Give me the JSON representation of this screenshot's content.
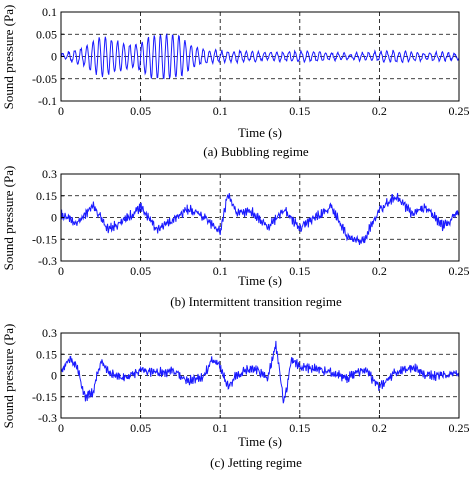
{
  "chart_data": [
    {
      "type": "line",
      "caption": "(a) Bubbling regime",
      "xlabel": "Time (s)",
      "ylabel": "Sound pressure (Pa)",
      "xlim": [
        0,
        0.25
      ],
      "ylim": [
        -0.1,
        0.1
      ],
      "xticks": [
        "0",
        "0.05",
        "0.1",
        "0.15",
        "0.2",
        "0.25"
      ],
      "yticks": [
        "0.1",
        "0.05",
        "0",
        "-0.05",
        "-0.1"
      ],
      "grid": true,
      "color": "#1a1aff",
      "series": [
        {
          "x": [
            0,
            0.005,
            0.01,
            0.015,
            0.02,
            0.025,
            0.03,
            0.035,
            0.04,
            0.045,
            0.05,
            0.055,
            0.06,
            0.065,
            0.07,
            0.075,
            0.08,
            0.085,
            0.09,
            0.1,
            0.11,
            0.12,
            0.13,
            0.14,
            0.15,
            0.16,
            0.17,
            0.18,
            0.19,
            0.2,
            0.21,
            0.22,
            0.23,
            0.24,
            0.25
          ],
          "y": [
            0.005,
            0.01,
            0.015,
            0.02,
            0.035,
            0.045,
            0.04,
            0.035,
            0.03,
            0.025,
            0.03,
            0.045,
            0.05,
            0.05,
            0.05,
            0.045,
            0.03,
            0.02,
            0.015,
            0.012,
            0.012,
            0.01,
            0.008,
            0.01,
            0.012,
            0.01,
            0.008,
            0.006,
            0.008,
            0.01,
            0.012,
            0.01,
            0.008,
            0.008,
            0.006
          ]
        }
      ]
    },
    {
      "type": "line",
      "caption": "(b) Intermittent transition regime",
      "xlabel": "Time (s)",
      "ylabel": "Sound pressure (Pa)",
      "xlim": [
        0,
        0.25
      ],
      "ylim": [
        -0.3,
        0.3
      ],
      "xticks": [
        "0",
        "0.05",
        "0.1",
        "0.15",
        "0.2",
        "0.25"
      ],
      "yticks": [
        "0.3",
        "0.15",
        "0",
        "-0.15",
        "-0.3"
      ],
      "grid": true,
      "color": "#1a1aff",
      "series": [
        {
          "x": [
            0,
            0.01,
            0.02,
            0.03,
            0.04,
            0.05,
            0.06,
            0.07,
            0.08,
            0.09,
            0.1,
            0.105,
            0.11,
            0.12,
            0.13,
            0.14,
            0.15,
            0.16,
            0.17,
            0.18,
            0.19,
            0.2,
            0.21,
            0.22,
            0.23,
            0.24,
            0.25
          ],
          "y": [
            0.02,
            -0.04,
            0.08,
            -0.08,
            -0.02,
            0.07,
            -0.08,
            -0.02,
            0.06,
            0.0,
            -0.1,
            0.16,
            0.04,
            0.04,
            -0.07,
            0.05,
            -0.07,
            0.0,
            0.07,
            -0.13,
            -0.16,
            0.05,
            0.15,
            0.03,
            0.07,
            -0.06,
            0.04
          ]
        }
      ]
    },
    {
      "type": "line",
      "caption": "(c) Jetting regime",
      "xlabel": "Time (s)",
      "ylabel": "Sound pressure (Pa)",
      "xlim": [
        0,
        0.25
      ],
      "ylim": [
        -0.3,
        0.3
      ],
      "xticks": [
        "0",
        "0.05",
        "0.1",
        "0.15",
        "0.2",
        "0.25"
      ],
      "yticks": [
        "0.3",
        "0.15",
        "0",
        "-0.15",
        "-0.3"
      ],
      "grid": true,
      "color": "#1a1aff",
      "series": [
        {
          "x": [
            0,
            0.005,
            0.01,
            0.015,
            0.02,
            0.025,
            0.03,
            0.04,
            0.05,
            0.06,
            0.07,
            0.08,
            0.09,
            0.095,
            0.1,
            0.105,
            0.11,
            0.12,
            0.13,
            0.135,
            0.14,
            0.145,
            0.15,
            0.16,
            0.17,
            0.18,
            0.19,
            0.2,
            0.21,
            0.22,
            0.23,
            0.24,
            0.25
          ],
          "y": [
            0.02,
            0.12,
            0.06,
            -0.15,
            -0.12,
            0.1,
            0.02,
            -0.02,
            0.04,
            0.02,
            0.03,
            -0.04,
            0.0,
            0.12,
            0.06,
            -0.08,
            0.0,
            0.06,
            -0.02,
            0.22,
            -0.2,
            0.12,
            0.06,
            0.05,
            0.02,
            -0.02,
            0.05,
            -0.08,
            0.02,
            0.06,
            0.0,
            0.0,
            0.02
          ]
        }
      ]
    }
  ]
}
